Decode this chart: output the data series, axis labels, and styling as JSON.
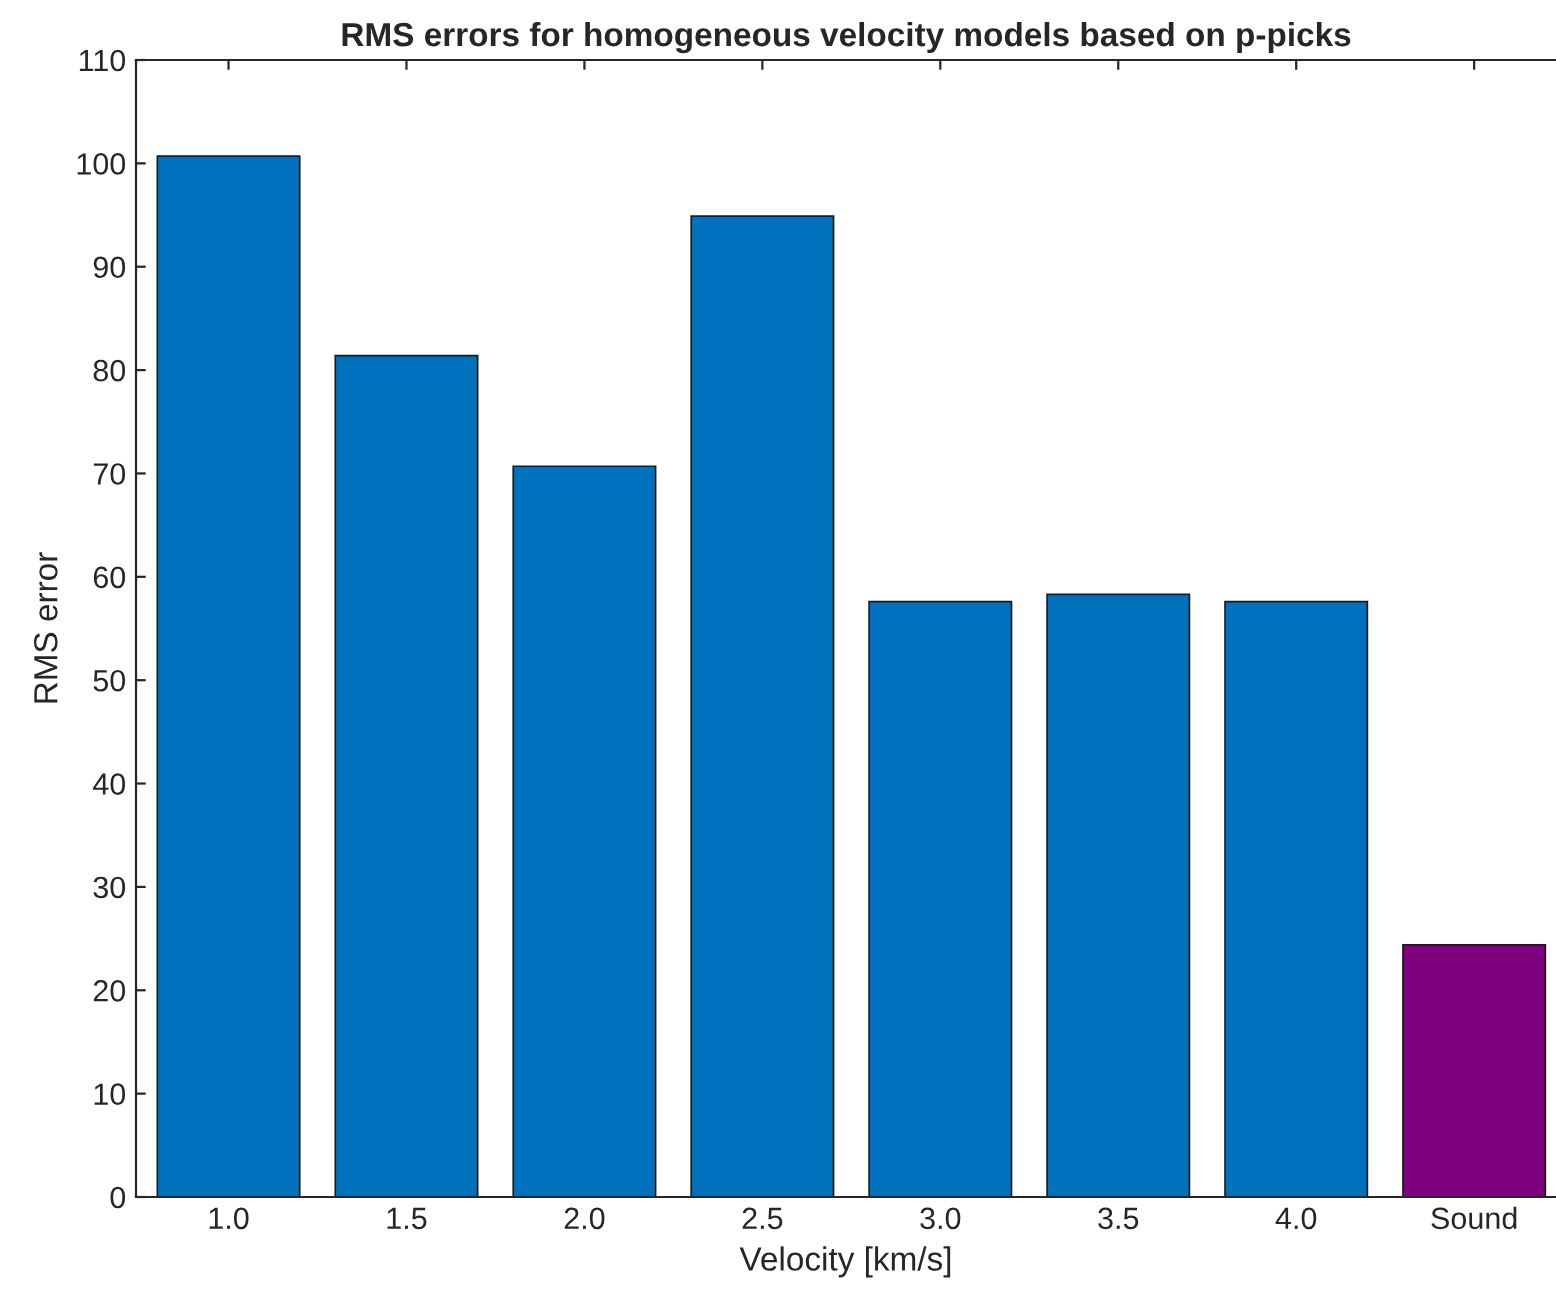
{
  "chart_data": {
    "type": "bar",
    "title": "RMS errors for homogeneous velocity models based on p-picks",
    "xlabel": "Velocity [km/s]",
    "ylabel": "RMS error",
    "categories": [
      "1.0",
      "1.5",
      "2.0",
      "2.5",
      "3.0",
      "3.5",
      "4.0",
      "Sound"
    ],
    "values": [
      100.7,
      81.4,
      70.7,
      94.9,
      57.6,
      58.3,
      57.6,
      24.4
    ],
    "colors": [
      "#0072bd",
      "#0072bd",
      "#0072bd",
      "#0072bd",
      "#0072bd",
      "#0072bd",
      "#0072bd",
      "#7e007e"
    ],
    "ylim": [
      0,
      110
    ],
    "yticks": [
      0,
      10,
      20,
      30,
      40,
      50,
      60,
      70,
      80,
      90,
      100,
      110
    ],
    "grid": false,
    "legend": false
  }
}
